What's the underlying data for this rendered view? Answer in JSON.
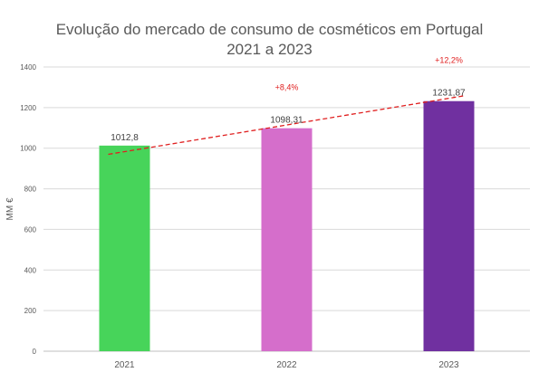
{
  "chart_data": {
    "type": "bar",
    "title": "Evolução do mercado de consumo de cosméticos em Portugal",
    "subtitle": "2021 a 2023",
    "xlabel": "",
    "ylabel": "MM €",
    "ylim": [
      0,
      1400
    ],
    "yticks": [
      0,
      200,
      400,
      600,
      800,
      1000,
      1200,
      1400
    ],
    "grid": true,
    "legend": "none",
    "categories": [
      "2021",
      "2022",
      "2023"
    ],
    "values": [
      1012.8,
      1098.31,
      1231.87
    ],
    "value_labels": [
      "1012,8",
      "1098,31",
      "1231,87"
    ],
    "bar_colors": [
      "#47d45a",
      "#d56ecb",
      "#7030a0"
    ],
    "trendline": {
      "style": "dashed",
      "color": "#e02020"
    },
    "annotations": [
      {
        "category": "2022",
        "text": "+8,4%"
      },
      {
        "category": "2023",
        "text": "+12,2%"
      }
    ]
  }
}
